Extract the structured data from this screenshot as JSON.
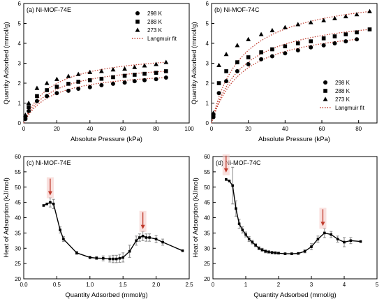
{
  "chart_data": [
    {
      "type": "scatter",
      "panel_label": "(a) Ni-MOF-74E",
      "xlabel": "Absolute Pressure (kPa)",
      "ylabel": "Quantity Adsorbed (mmol/g)",
      "xlim": [
        0,
        100
      ],
      "ylim": [
        0,
        6
      ],
      "xticks": [
        "0",
        "20",
        "40",
        "60",
        "80",
        "100"
      ],
      "yticks": [
        "0",
        "1",
        "2",
        "3",
        "4",
        "5",
        "6"
      ],
      "legend_position": "top-right",
      "series": [
        {
          "name": "298 K",
          "marker": "circle",
          "x": [
            1,
            3,
            8,
            14,
            20,
            27,
            33,
            40,
            47,
            54,
            61,
            67,
            73,
            80,
            86
          ],
          "y": [
            0.2,
            0.6,
            1.1,
            1.35,
            1.5,
            1.62,
            1.72,
            1.8,
            1.9,
            1.97,
            2.03,
            2.1,
            2.15,
            2.2,
            2.28
          ]
        },
        {
          "name": "288 K",
          "marker": "square",
          "x": [
            1,
            3,
            8,
            14,
            20,
            27,
            33,
            40,
            47,
            54,
            61,
            67,
            73,
            80,
            86
          ],
          "y": [
            0.3,
            0.8,
            1.35,
            1.65,
            1.82,
            1.97,
            2.07,
            2.15,
            2.22,
            2.3,
            2.37,
            2.42,
            2.47,
            2.52,
            2.6
          ]
        },
        {
          "name": "273 K",
          "marker": "triangle",
          "x": [
            1,
            3,
            8,
            14,
            20,
            27,
            33,
            40,
            47,
            54,
            61,
            67,
            73,
            80,
            86
          ],
          "y": [
            0.4,
            1.0,
            1.75,
            2.0,
            2.2,
            2.35,
            2.45,
            2.55,
            2.6,
            2.68,
            2.72,
            2.8,
            2.88,
            2.95,
            3.05
          ]
        },
        {
          "name": "Langmuir fit",
          "marker": "dotted-line"
        }
      ]
    },
    {
      "type": "scatter",
      "panel_label": "(b) Ni-MOF-74C",
      "xlabel": "Absolute Pressure (kPa)",
      "ylabel": "Quantity Adsorbed (mmol/g)",
      "xlim": [
        0,
        90
      ],
      "ylim": [
        0,
        6
      ],
      "xticks": [
        "0",
        "20",
        "40",
        "60",
        "80"
      ],
      "yticks": [
        "0",
        "1",
        "2",
        "3",
        "4",
        "5",
        "6"
      ],
      "legend_position": "bottom-right",
      "series": [
        {
          "name": "298 K",
          "marker": "circle",
          "x": [
            1,
            4,
            8,
            14,
            20,
            27,
            33,
            40,
            47,
            54,
            61,
            67,
            73,
            79
          ],
          "y": [
            0.3,
            1.5,
            2.1,
            2.6,
            2.95,
            3.2,
            3.35,
            3.5,
            3.65,
            3.8,
            3.9,
            4.0,
            4.1,
            4.2
          ]
        },
        {
          "name": "288 K",
          "marker": "square",
          "x": [
            1,
            4,
            8,
            14,
            20,
            27,
            33,
            40,
            47,
            54,
            61,
            67,
            73,
            79,
            86
          ],
          "y": [
            0.4,
            2.0,
            2.6,
            3.05,
            3.3,
            3.55,
            3.7,
            3.85,
            4.0,
            4.1,
            4.25,
            4.35,
            4.45,
            4.55,
            4.7
          ]
        },
        {
          "name": "273 K",
          "marker": "triangle",
          "x": [
            1,
            4,
            8,
            14,
            20,
            27,
            33,
            40,
            47,
            54,
            61,
            67,
            73,
            79,
            86
          ],
          "y": [
            0.5,
            2.9,
            3.45,
            3.9,
            4.2,
            4.45,
            4.65,
            4.8,
            4.95,
            5.05,
            5.15,
            5.25,
            5.35,
            5.45,
            5.6
          ]
        },
        {
          "name": "Langmuir fit",
          "marker": "dotted-line"
        }
      ]
    },
    {
      "type": "line",
      "panel_label": "(c) Ni-MOF-74E",
      "xlabel": "Quantity Adsorbed (mmol/g)",
      "ylabel": "Heat of Adsorption (kJ/mol)",
      "xlim": [
        0,
        2.5
      ],
      "ylim": [
        20,
        60
      ],
      "xticks": [
        "0.0",
        "0.5",
        "1.0",
        "1.5",
        "2.0",
        "2.5"
      ],
      "yticks": [
        "20",
        "25",
        "30",
        "35",
        "40",
        "45",
        "50",
        "55",
        "60"
      ],
      "x": [
        0.3,
        0.35,
        0.4,
        0.45,
        0.55,
        0.6,
        0.8,
        1.0,
        1.1,
        1.2,
        1.3,
        1.35,
        1.4,
        1.45,
        1.5,
        1.6,
        1.7,
        1.75,
        1.8,
        1.85,
        1.9,
        2.0,
        2.1,
        2.4
      ],
      "y": [
        44.0,
        44.5,
        45.0,
        44.5,
        36.0,
        33.0,
        28.5,
        27.0,
        26.8,
        26.7,
        26.5,
        26.5,
        26.5,
        26.7,
        27.0,
        29.0,
        32.5,
        33.5,
        34.0,
        33.5,
        33.5,
        33.0,
        32.0,
        29.2
      ],
      "error": [
        0,
        0,
        1.5,
        1.5,
        1.0,
        0.8,
        0.5,
        0.4,
        0.5,
        0.8,
        1.0,
        1.2,
        1.2,
        1.3,
        1.5,
        2.0,
        1.5,
        1.2,
        1.5,
        1.2,
        1.2,
        1.2,
        1.0,
        0
      ],
      "arrows_at_x": [
        0.4,
        1.8
      ]
    },
    {
      "type": "line",
      "panel_label": "(d) Ni-MOF-74C",
      "xlabel": "Quantity Adsorbed (mmol/g)",
      "ylabel": "Heat of Adsorption (kJ/mol)",
      "xlim": [
        0,
        5
      ],
      "ylim": [
        20,
        60
      ],
      "xticks": [
        "0",
        "1",
        "2",
        "3",
        "4",
        "5"
      ],
      "yticks": [
        "20",
        "25",
        "30",
        "35",
        "40",
        "45",
        "50",
        "55",
        "60"
      ],
      "x": [
        0.4,
        0.5,
        0.6,
        0.7,
        0.8,
        0.9,
        1.0,
        1.1,
        1.2,
        1.3,
        1.4,
        1.5,
        1.6,
        1.7,
        1.8,
        1.9,
        2.0,
        2.2,
        2.4,
        2.6,
        2.8,
        3.0,
        3.2,
        3.4,
        3.6,
        3.8,
        4.0,
        4.2,
        4.5
      ],
      "y": [
        52.5,
        52.0,
        50.5,
        43.0,
        38.0,
        36.0,
        34.5,
        33.0,
        32.0,
        31.0,
        30.0,
        29.5,
        29.0,
        28.8,
        28.6,
        28.5,
        28.4,
        28.2,
        28.2,
        28.3,
        29.0,
        30.5,
        33.0,
        35.0,
        34.5,
        33.0,
        32.0,
        32.5,
        32.2
      ],
      "error": [
        0,
        0,
        6.0,
        2.5,
        1.5,
        1.0,
        0.8,
        0.8,
        0.6,
        0.5,
        0.5,
        0.5,
        0.5,
        0.4,
        0.4,
        0.4,
        0.3,
        0.3,
        0.3,
        0.3,
        0.5,
        1.0,
        1.0,
        1.5,
        1.0,
        1.0,
        1.5,
        1.0,
        0
      ],
      "arrows_at_x": [
        0.4,
        3.35
      ]
    }
  ]
}
